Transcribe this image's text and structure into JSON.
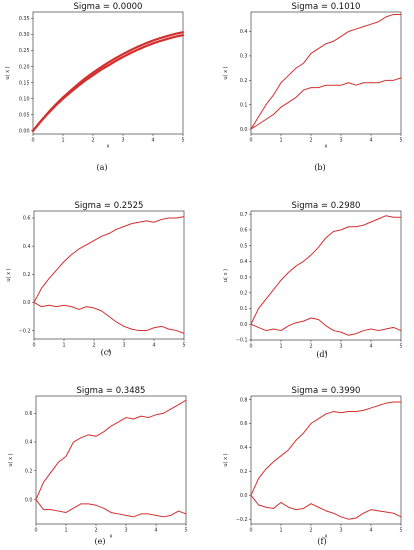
{
  "captions": [
    "(a)",
    "(b)",
    "(c)",
    "(d)",
    "(e)",
    "(f)"
  ],
  "chart_data": [
    {
      "type": "line",
      "title": "Sigma = 0.0000",
      "xlabel": "x",
      "ylabel": "u( x )",
      "xlim": [
        0,
        5
      ],
      "ylim": [
        -0.01,
        0.37
      ],
      "xticks": [
        0,
        1,
        2,
        3,
        4,
        5
      ],
      "yticks": [
        0.0,
        0.05,
        0.1,
        0.15,
        0.2,
        0.25,
        0.3,
        0.35
      ],
      "ytick_labels": [
        "0.00",
        "0.05",
        "0.10",
        "0.15",
        "0.20",
        "0.25",
        "0.30",
        "0.35"
      ],
      "line_color": "#d32f2f",
      "series": [
        {
          "x": [
            0,
            0.25,
            0.5,
            0.75,
            1,
            1.25,
            1.5,
            1.75,
            2,
            2.25,
            2.5,
            2.75,
            3,
            3.25,
            3.5,
            3.75,
            4,
            4.25,
            4.5,
            4.75,
            5
          ],
          "values": [
            0,
            0.028,
            0.054,
            0.078,
            0.1,
            0.12,
            0.139,
            0.157,
            0.173,
            0.189,
            0.203,
            0.217,
            0.23,
            0.242,
            0.253,
            0.263,
            0.272,
            0.28,
            0.287,
            0.293,
            0.298
          ],
          "width": 2.2
        },
        {
          "x": [
            0,
            0.25,
            0.5,
            0.75,
            1,
            1.25,
            1.5,
            1.75,
            2,
            2.25,
            2.5,
            2.75,
            3,
            3.25,
            3.5,
            3.75,
            4,
            4.25,
            4.5,
            4.75,
            5
          ],
          "values": [
            0,
            0.029,
            0.056,
            0.081,
            0.104,
            0.125,
            0.145,
            0.164,
            0.181,
            0.197,
            0.212,
            0.226,
            0.239,
            0.251,
            0.262,
            0.272,
            0.281,
            0.289,
            0.296,
            0.302,
            0.307
          ],
          "width": 2.2
        }
      ]
    },
    {
      "type": "line",
      "title": "Sigma = 0.1010",
      "xlabel": "x",
      "ylabel": "u( x )",
      "xlim": [
        0,
        5
      ],
      "ylim": [
        -0.02,
        0.48
      ],
      "xticks": [
        0,
        1,
        2,
        3,
        4,
        5
      ],
      "yticks": [
        0.0,
        0.1,
        0.2,
        0.3,
        0.4
      ],
      "ytick_labels": [
        "0.0",
        "0.1",
        "0.2",
        "0.3",
        "0.4"
      ],
      "line_color": "#d32f2f",
      "series": [
        {
          "x": [
            0,
            0.25,
            0.5,
            0.75,
            1,
            1.25,
            1.5,
            1.75,
            2,
            2.25,
            2.5,
            2.75,
            3,
            3.25,
            3.5,
            3.75,
            4,
            4.25,
            4.5,
            4.75,
            5
          ],
          "values": [
            0,
            0.05,
            0.1,
            0.14,
            0.19,
            0.22,
            0.25,
            0.27,
            0.31,
            0.33,
            0.35,
            0.36,
            0.38,
            0.4,
            0.41,
            0.42,
            0.43,
            0.44,
            0.46,
            0.47,
            0.47
          ],
          "width": 1
        },
        {
          "x": [
            0,
            0.25,
            0.5,
            0.75,
            1,
            1.25,
            1.5,
            1.75,
            2,
            2.25,
            2.5,
            2.75,
            3,
            3.25,
            3.5,
            3.75,
            4,
            4.25,
            4.5,
            4.75,
            5
          ],
          "values": [
            0,
            0.02,
            0.04,
            0.06,
            0.09,
            0.11,
            0.13,
            0.16,
            0.17,
            0.17,
            0.18,
            0.18,
            0.18,
            0.19,
            0.18,
            0.19,
            0.19,
            0.19,
            0.2,
            0.2,
            0.21
          ],
          "width": 1
        }
      ]
    },
    {
      "type": "line",
      "title": "Sigma = 0.2525",
      "xlabel": "x",
      "ylabel": "u( x )",
      "xlim": [
        0,
        5
      ],
      "ylim": [
        -0.26,
        0.65
      ],
      "xticks": [
        0,
        1,
        2,
        3,
        4,
        5
      ],
      "yticks": [
        -0.2,
        0.0,
        0.2,
        0.4,
        0.6
      ],
      "ytick_labels": [
        "−0.2",
        "0.0",
        "0.2",
        "0.4",
        "0.6"
      ],
      "line_color": "#d32f2f",
      "series": [
        {
          "x": [
            0,
            0.25,
            0.5,
            0.75,
            1,
            1.25,
            1.5,
            1.75,
            2,
            2.25,
            2.5,
            2.75,
            3,
            3.25,
            3.5,
            3.75,
            4,
            4.25,
            4.5,
            4.75,
            5
          ],
          "values": [
            0,
            0.1,
            0.17,
            0.23,
            0.29,
            0.34,
            0.38,
            0.41,
            0.44,
            0.47,
            0.49,
            0.52,
            0.54,
            0.56,
            0.57,
            0.58,
            0.57,
            0.59,
            0.6,
            0.6,
            0.61
          ],
          "width": 1
        },
        {
          "x": [
            0,
            0.25,
            0.5,
            0.75,
            1,
            1.25,
            1.5,
            1.75,
            2,
            2.25,
            2.5,
            2.75,
            3,
            3.25,
            3.5,
            3.75,
            4,
            4.25,
            4.5,
            4.75,
            5
          ],
          "values": [
            0,
            -0.03,
            -0.02,
            -0.03,
            -0.02,
            -0.03,
            -0.05,
            -0.03,
            -0.04,
            -0.06,
            -0.1,
            -0.14,
            -0.17,
            -0.19,
            -0.2,
            -0.2,
            -0.18,
            -0.17,
            -0.19,
            -0.2,
            -0.22
          ],
          "width": 1
        }
      ]
    },
    {
      "type": "line",
      "title": "Sigma = 0.2980",
      "xlabel": "x",
      "ylabel": "u( x )",
      "xlim": [
        0,
        5
      ],
      "ylim": [
        -0.1,
        0.72
      ],
      "xticks": [
        0,
        1,
        2,
        3,
        4,
        5
      ],
      "yticks": [
        -0.1,
        0.0,
        0.1,
        0.2,
        0.3,
        0.4,
        0.5,
        0.6,
        0.7
      ],
      "ytick_labels": [
        "−0.1",
        "0.0",
        "0.1",
        "0.2",
        "0.3",
        "0.4",
        "0.5",
        "0.6",
        "0.7"
      ],
      "line_color": "#d32f2f",
      "series": [
        {
          "x": [
            0,
            0.25,
            0.5,
            0.75,
            1,
            1.25,
            1.5,
            1.75,
            2,
            2.25,
            2.5,
            2.75,
            3,
            3.25,
            3.5,
            3.75,
            4,
            4.25,
            4.5,
            4.75,
            5
          ],
          "values": [
            0,
            0.1,
            0.16,
            0.22,
            0.28,
            0.33,
            0.37,
            0.4,
            0.44,
            0.49,
            0.55,
            0.59,
            0.6,
            0.62,
            0.62,
            0.63,
            0.65,
            0.67,
            0.69,
            0.68,
            0.68
          ],
          "width": 1
        },
        {
          "x": [
            0,
            0.25,
            0.5,
            0.75,
            1,
            1.25,
            1.5,
            1.75,
            2,
            2.25,
            2.5,
            2.75,
            3,
            3.25,
            3.5,
            3.75,
            4,
            4.25,
            4.5,
            4.75,
            5
          ],
          "values": [
            0,
            -0.02,
            -0.04,
            -0.03,
            -0.04,
            -0.01,
            0.01,
            0.02,
            0.04,
            0.03,
            -0.01,
            -0.04,
            -0.05,
            -0.07,
            -0.06,
            -0.04,
            -0.03,
            -0.04,
            -0.03,
            -0.02,
            -0.04
          ],
          "width": 1
        }
      ]
    },
    {
      "type": "line",
      "title": "Sigma = 0.3485",
      "xlabel": "x",
      "ylabel": "u( x )",
      "xlim": [
        0,
        5
      ],
      "ylim": [
        -0.17,
        0.72
      ],
      "xticks": [
        0,
        1,
        2,
        3,
        4,
        5
      ],
      "yticks": [
        0.0,
        0.2,
        0.4,
        0.6
      ],
      "ytick_labels": [
        "0.0",
        "0.2",
        "0.4",
        "0.6"
      ],
      "line_color": "#d32f2f",
      "series": [
        {
          "x": [
            0,
            0.25,
            0.5,
            0.75,
            1,
            1.25,
            1.5,
            1.75,
            2,
            2.25,
            2.5,
            2.75,
            3,
            3.25,
            3.5,
            3.75,
            4,
            4.25,
            4.5,
            4.75,
            5
          ],
          "values": [
            0,
            0.12,
            0.19,
            0.26,
            0.3,
            0.4,
            0.43,
            0.45,
            0.44,
            0.47,
            0.51,
            0.54,
            0.57,
            0.56,
            0.58,
            0.57,
            0.59,
            0.6,
            0.63,
            0.66,
            0.69
          ],
          "width": 1
        },
        {
          "x": [
            0,
            0.25,
            0.5,
            0.75,
            1,
            1.25,
            1.5,
            1.75,
            2,
            2.25,
            2.5,
            2.75,
            3,
            3.25,
            3.5,
            3.75,
            4,
            4.25,
            4.5,
            4.75,
            5
          ],
          "values": [
            0,
            -0.07,
            -0.07,
            -0.08,
            -0.09,
            -0.06,
            -0.03,
            -0.03,
            -0.04,
            -0.06,
            -0.09,
            -0.1,
            -0.11,
            -0.12,
            -0.1,
            -0.1,
            -0.11,
            -0.12,
            -0.11,
            -0.08,
            -0.1
          ],
          "width": 1
        }
      ]
    },
    {
      "type": "line",
      "title": "Sigma = 0.3990",
      "xlabel": "x",
      "ylabel": "u( x )",
      "xlim": [
        0,
        5
      ],
      "ylim": [
        -0.24,
        0.83
      ],
      "xticks": [
        0,
        1,
        2,
        3,
        4,
        5
      ],
      "yticks": [
        -0.2,
        0.0,
        0.2,
        0.4,
        0.6,
        0.8
      ],
      "ytick_labels": [
        "−0.2",
        "0.0",
        "0.2",
        "0.4",
        "0.6",
        "0.8"
      ],
      "line_color": "#d32f2f",
      "series": [
        {
          "x": [
            0,
            0.25,
            0.5,
            0.75,
            1,
            1.25,
            1.5,
            1.75,
            2,
            2.25,
            2.5,
            2.75,
            3,
            3.25,
            3.5,
            3.75,
            4,
            4.25,
            4.5,
            4.75,
            5
          ],
          "values": [
            0,
            0.14,
            0.22,
            0.28,
            0.33,
            0.38,
            0.46,
            0.52,
            0.6,
            0.64,
            0.68,
            0.7,
            0.69,
            0.7,
            0.7,
            0.71,
            0.73,
            0.75,
            0.77,
            0.78,
            0.78
          ],
          "width": 1
        },
        {
          "x": [
            0,
            0.25,
            0.5,
            0.75,
            1,
            1.25,
            1.5,
            1.75,
            2,
            2.25,
            2.5,
            2.75,
            3,
            3.25,
            3.5,
            3.75,
            4,
            4.25,
            4.5,
            4.75,
            5
          ],
          "values": [
            0,
            -0.08,
            -0.1,
            -0.11,
            -0.06,
            -0.1,
            -0.12,
            -0.11,
            -0.07,
            -0.1,
            -0.13,
            -0.15,
            -0.18,
            -0.2,
            -0.19,
            -0.15,
            -0.12,
            -0.13,
            -0.14,
            -0.15,
            -0.18
          ],
          "width": 1
        }
      ]
    }
  ]
}
